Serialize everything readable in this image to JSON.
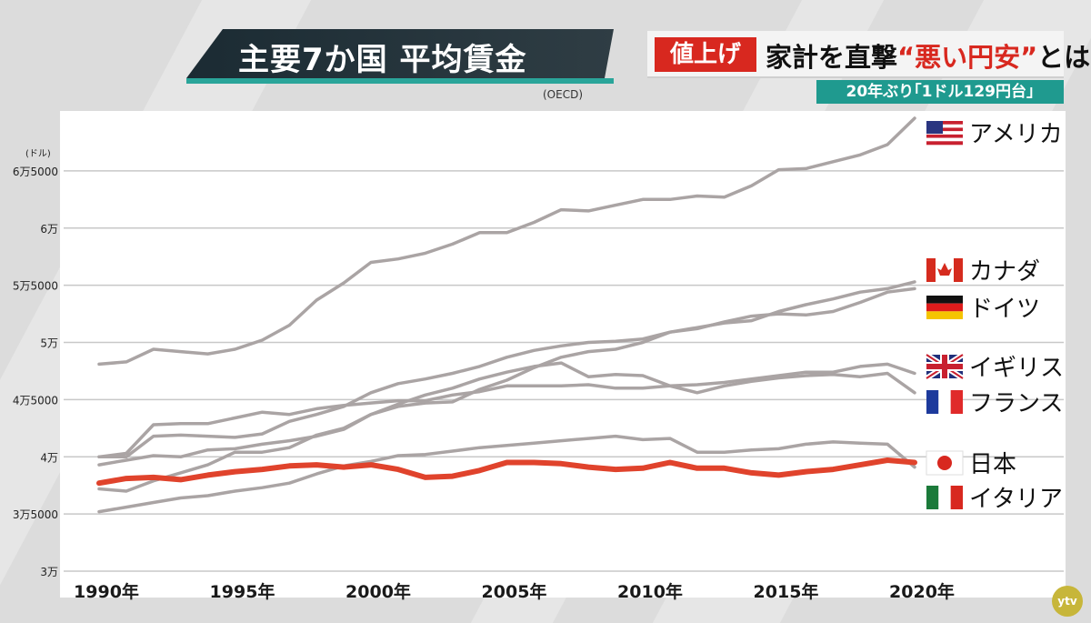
{
  "header": {
    "title": "主要7か国 平均賃金",
    "source": "(OECD)"
  },
  "news": {
    "tag": "値上げ",
    "headline_prefix": "家計を直撃",
    "headline_quote": "“悪い円安”",
    "headline_suffix": "とは",
    "subline": "20年ぶり｢1ドル129円台｣"
  },
  "channel_logo": "ytv",
  "colors": {
    "japan_line": "#e0432c",
    "other_lines": "#aaa4a4",
    "grid": "#c8c8c8",
    "accent_teal": "#2aa59a",
    "accent_red": "#d8281f"
  },
  "chart_data": {
    "type": "line",
    "title": "主要7か国 平均賃金",
    "ylabel": "(ドル)",
    "ylim": [
      30000,
      70000
    ],
    "xlim": [
      1990,
      2020
    ],
    "x": [
      1990,
      1991,
      1992,
      1993,
      1994,
      1995,
      1996,
      1997,
      1998,
      1999,
      2000,
      2001,
      2002,
      2003,
      2004,
      2005,
      2006,
      2007,
      2008,
      2009,
      2010,
      2011,
      2012,
      2013,
      2014,
      2015,
      2016,
      2017,
      2018,
      2019,
      2020
    ],
    "x_ticks": [
      {
        "value": 1990,
        "label": "1990年"
      },
      {
        "value": 1995,
        "label": "1995年"
      },
      {
        "value": 2000,
        "label": "2000年"
      },
      {
        "value": 2005,
        "label": "2005年"
      },
      {
        "value": 2010,
        "label": "2010年"
      },
      {
        "value": 2015,
        "label": "2015年"
      },
      {
        "value": 2020,
        "label": "2020年"
      }
    ],
    "y_ticks": [
      {
        "value": 30000,
        "label": "3万"
      },
      {
        "value": 35000,
        "label": "3万5000"
      },
      {
        "value": 40000,
        "label": "4万"
      },
      {
        "value": 45000,
        "label": "4万5000"
      },
      {
        "value": 50000,
        "label": "5万"
      },
      {
        "value": 55000,
        "label": "5万5000"
      },
      {
        "value": 60000,
        "label": "6万"
      },
      {
        "value": 65000,
        "label": "6万5000"
      }
    ],
    "grid": true,
    "legend_placement": "right",
    "series": [
      {
        "name": "アメリカ",
        "flag": "us",
        "highlight": false,
        "values": [
          48100,
          48300,
          49400,
          49200,
          49000,
          49400,
          50200,
          51500,
          53700,
          55200,
          57000,
          57300,
          57800,
          58600,
          59600,
          59600,
          60500,
          61600,
          61500,
          62000,
          62500,
          62500,
          62800,
          62700,
          63700,
          65100,
          65200,
          65800,
          66400,
          67300,
          69600
        ]
      },
      {
        "name": "カナダ",
        "flag": "ca",
        "highlight": false,
        "values": [
          40000,
          40000,
          41800,
          41900,
          41800,
          41700,
          42000,
          43100,
          43700,
          44400,
          45600,
          46400,
          46800,
          47300,
          47900,
          48700,
          49300,
          49700,
          50000,
          50100,
          50300,
          50900,
          51300,
          51700,
          51900,
          52700,
          53300,
          53800,
          54400,
          54700,
          55300
        ]
      },
      {
        "name": "ドイツ",
        "flag": "de",
        "highlight": false,
        "values": [
          39300,
          39700,
          40100,
          40000,
          40600,
          40700,
          41100,
          41400,
          41800,
          42400,
          43700,
          44400,
          44700,
          44800,
          45900,
          46700,
          47800,
          48700,
          49200,
          49400,
          50000,
          50900,
          51200,
          51800,
          52300,
          52500,
          52400,
          52700,
          53500,
          54400,
          54700
        ]
      },
      {
        "name": "イギリス",
        "flag": "gb",
        "highlight": false,
        "values": [
          37200,
          37000,
          37900,
          38600,
          39300,
          40400,
          40400,
          40800,
          41900,
          42500,
          43700,
          44600,
          45400,
          46000,
          46800,
          47400,
          47900,
          48200,
          47000,
          47200,
          47100,
          46200,
          46300,
          46500,
          46800,
          47100,
          47400,
          47400,
          47900,
          48100,
          47300
        ]
      },
      {
        "name": "フランス",
        "flag": "fr",
        "highlight": false,
        "values": [
          40000,
          40300,
          42800,
          42900,
          42900,
          43400,
          43900,
          43700,
          44200,
          44500,
          44700,
          44900,
          44900,
          45400,
          45700,
          46200,
          46200,
          46200,
          46300,
          46000,
          46000,
          46200,
          45600,
          46200,
          46600,
          46900,
          47100,
          47200,
          47000,
          47300,
          45600
        ]
      },
      {
        "name": "日本",
        "flag": "jp",
        "highlight": true,
        "values": [
          37700,
          38100,
          38200,
          38000,
          38400,
          38700,
          38900,
          39200,
          39300,
          39100,
          39300,
          38900,
          38200,
          38300,
          38800,
          39500,
          39500,
          39400,
          39100,
          38900,
          39000,
          39500,
          39000,
          39000,
          38600,
          38400,
          38700,
          38900,
          39300,
          39700,
          39500
        ]
      },
      {
        "name": "イタリア",
        "flag": "it",
        "highlight": false,
        "values": [
          35200,
          35600,
          36000,
          36400,
          36600,
          37000,
          37300,
          37700,
          38500,
          39200,
          39600,
          40100,
          40200,
          40500,
          40800,
          41000,
          41200,
          41400,
          41600,
          41800,
          41500,
          41600,
          40400,
          40400,
          40600,
          40700,
          41100,
          41300,
          41200,
          41100,
          39100
        ]
      }
    ]
  }
}
